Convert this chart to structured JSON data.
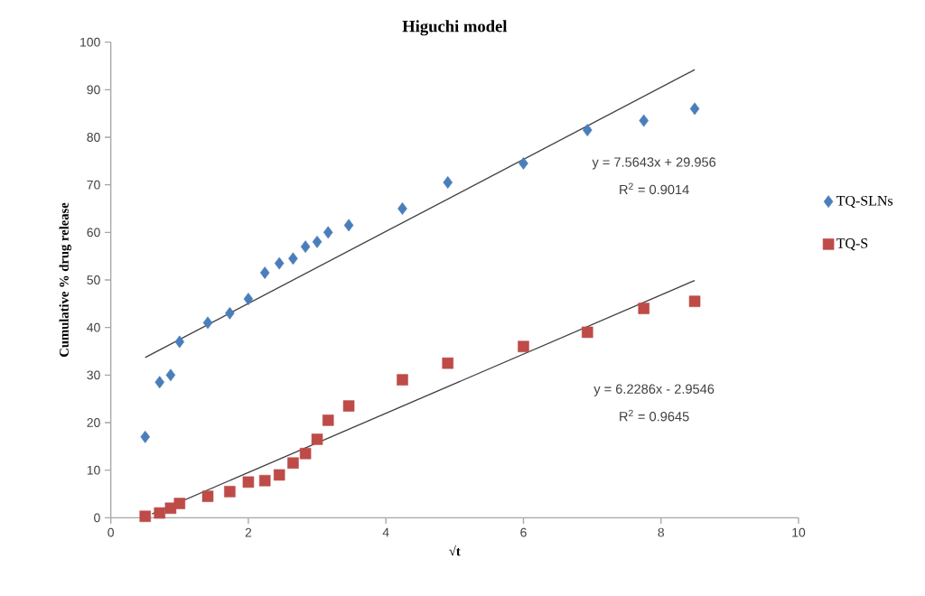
{
  "chart_data": {
    "type": "scatter",
    "title": "Higuchi model",
    "xlabel": "√t",
    "ylabel": "Cumulative % drug release",
    "xlim": [
      0,
      10
    ],
    "xticks": [
      0,
      2,
      4,
      6,
      8,
      10
    ],
    "ylim": [
      0,
      100
    ],
    "yticks": [
      0,
      10,
      20,
      30,
      40,
      50,
      60,
      70,
      80,
      90,
      100
    ],
    "grid": false,
    "legend": "right",
    "series": [
      {
        "name": "TQ-SLNs",
        "color": "#4a7ebb",
        "marker": "diamond",
        "x": [
          0.5,
          0.71,
          0.87,
          1,
          1.41,
          1.73,
          2,
          2.24,
          2.45,
          2.65,
          2.83,
          3,
          3.16,
          3.46,
          4.24,
          4.9,
          6,
          6.93,
          7.75,
          8.49
        ],
        "values": [
          17,
          28.5,
          30,
          37,
          41,
          43,
          46,
          51.5,
          53.5,
          54.5,
          57,
          58,
          60,
          61.5,
          65,
          70.5,
          74.5,
          81.5,
          83.5,
          86
        ]
      },
      {
        "name": "TQ-S",
        "color": "#be4b48",
        "marker": "square",
        "x": [
          0.5,
          0.71,
          0.87,
          1,
          1.41,
          1.73,
          2,
          2.24,
          2.45,
          2.65,
          2.83,
          3,
          3.16,
          3.46,
          4.24,
          4.9,
          6,
          6.93,
          7.75,
          8.49
        ],
        "values": [
          0.3,
          1,
          2,
          3,
          4.5,
          5.5,
          7.5,
          7.8,
          9,
          11.5,
          13.5,
          16.5,
          20.5,
          23.5,
          29,
          32.5,
          36,
          39,
          44,
          45.5
        ]
      },
      {
        "type": "line",
        "color": "#404040",
        "marker": "none",
        "x": [
          0.5,
          8.49
        ],
        "values": [
          33.7,
          94.2
        ]
      },
      {
        "type": "line",
        "color": "#404040",
        "marker": "none",
        "x": [
          0.6,
          8.49
        ],
        "values": [
          0.8,
          49.9
        ]
      }
    ],
    "annotations": [
      "y = 7.5643x + 29.956",
      "R$^{2}$ = 0.9014",
      "y = 6.2286x - 2.9546",
      "R$^{2}$ = 0.9645"
    ]
  }
}
